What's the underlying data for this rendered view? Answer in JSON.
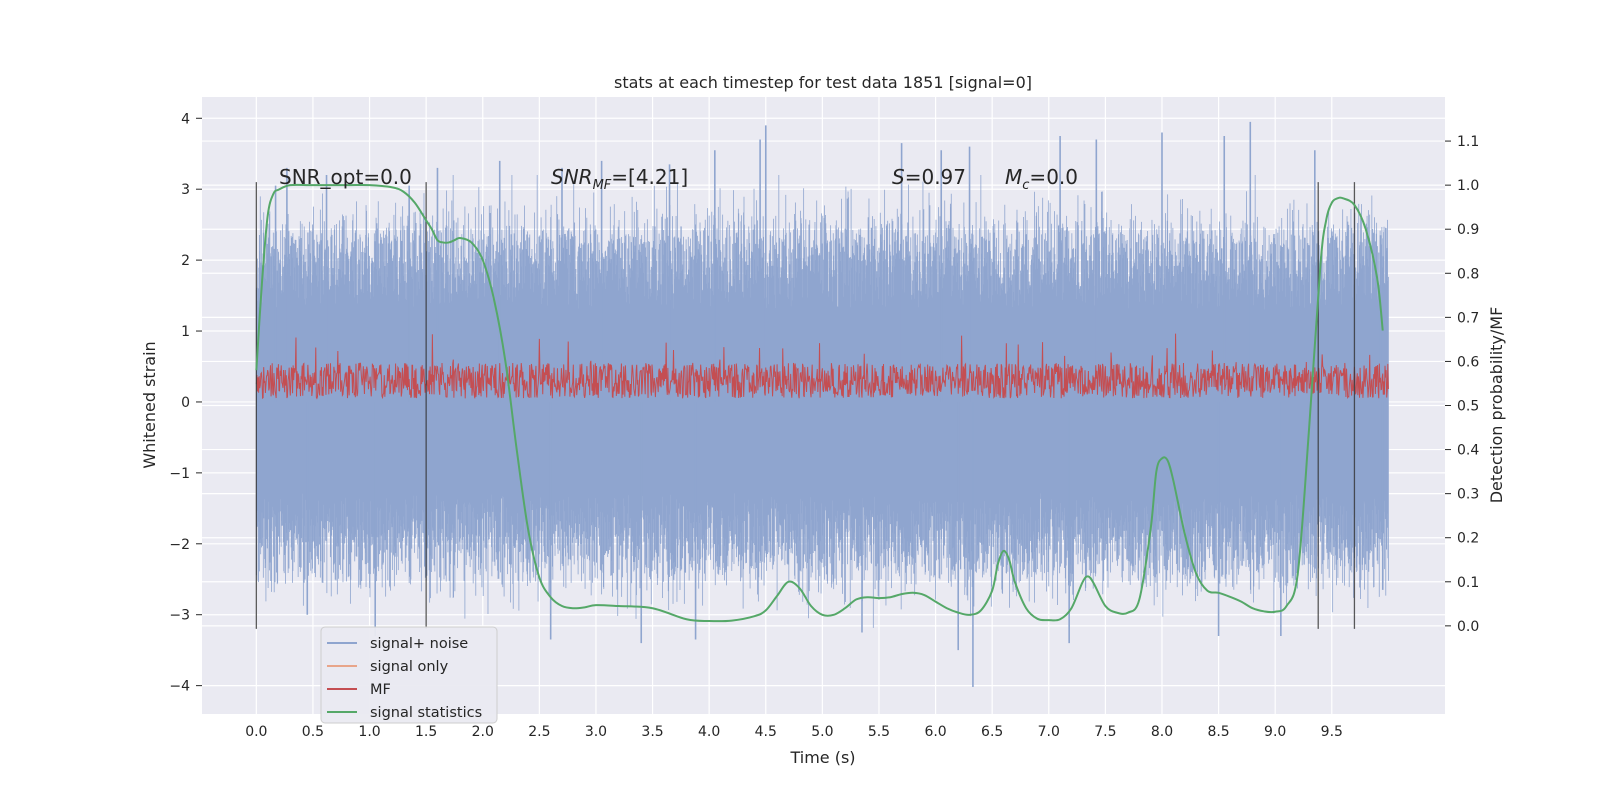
{
  "chart_data": {
    "type": "line",
    "title": "stats at each timestep for test data 1851 [signal=0]",
    "xlabel": "Time (s)",
    "ylabel": "Whitened strain",
    "ylabel_right": "Detection probability/MF",
    "xlim": [
      -0.48,
      10.5
    ],
    "ylim": [
      -4.4,
      4.3
    ],
    "ylim_right": [
      -0.2,
      1.2
    ],
    "x_ticks": [
      "0.0",
      "0.5",
      "1.0",
      "1.5",
      "2.0",
      "2.5",
      "3.0",
      "3.5",
      "4.0",
      "4.5",
      "5.0",
      "5.5",
      "6.0",
      "6.5",
      "7.0",
      "7.5",
      "8.0",
      "8.5",
      "9.0",
      "9.5"
    ],
    "y_ticks": [
      "4",
      "3",
      "2",
      "1",
      "0",
      "−1",
      "−2",
      "−3",
      "−4"
    ],
    "y_right_ticks": [
      "0.0",
      "0.1",
      "0.2",
      "0.3",
      "0.4",
      "0.5",
      "0.6",
      "0.7",
      "0.8",
      "0.9",
      "1.0",
      "1.1"
    ],
    "grid": true,
    "legend_position": "lower-left",
    "legend": [
      {
        "label": "signal+ noise",
        "color": "#8fa5cf"
      },
      {
        "label": "signal only",
        "color": "#e8a58a"
      },
      {
        "label": "MF",
        "color": "#c44e52"
      },
      {
        "label": "signal statistics",
        "color": "#55a868"
      }
    ],
    "annotations": [
      {
        "id": "snr_opt",
        "text": "SNR_opt=0.0",
        "x": 0.2,
        "y": 3.02
      },
      {
        "id": "snr_mf",
        "text": "[4.21]",
        "x": 2.6,
        "y": 3.02
      },
      {
        "id": "s",
        "text": "0.97",
        "x": 5.6,
        "y": 3.02
      },
      {
        "id": "mc",
        "text": "0.0",
        "x": 6.6,
        "y": 3.02
      }
    ],
    "vertical_lines_x": [
      0.0,
      1.5,
      9.38,
      9.7
    ],
    "vertical_lines_yrange": [
      -3.2,
      3.1
    ],
    "series": [
      {
        "name": "signal+ noise",
        "color": "#8fa5cf",
        "x_range": [
          0.0,
          10.0
        ],
        "y_envelope_typical": [
          -2.3,
          2.3
        ],
        "y_extremes": [
          -4.0,
          3.95
        ],
        "peaks": [
          [
            0.17,
            3.05
          ],
          [
            0.27,
            3.3
          ],
          [
            0.62,
            3.2
          ],
          [
            1.35,
            3.05
          ],
          [
            1.6,
            3.3
          ],
          [
            2.15,
            3.4
          ],
          [
            2.7,
            3.3
          ],
          [
            3.05,
            3.4
          ],
          [
            3.65,
            3.35
          ],
          [
            4.05,
            3.55
          ],
          [
            4.45,
            3.7
          ],
          [
            4.5,
            3.9
          ],
          [
            5.7,
            3.65
          ],
          [
            6.05,
            3.55
          ],
          [
            6.3,
            3.6
          ],
          [
            7.1,
            3.75
          ],
          [
            7.42,
            3.7
          ],
          [
            8.0,
            3.8
          ],
          [
            8.55,
            3.75
          ],
          [
            8.78,
            3.95
          ],
          [
            9.35,
            3.55
          ],
          [
            9.93,
            2.35
          ]
        ],
        "troughs": [
          [
            0.45,
            -3.0
          ],
          [
            1.05,
            -3.3
          ],
          [
            2.6,
            -3.35
          ],
          [
            3.4,
            -3.4
          ],
          [
            3.88,
            -3.35
          ],
          [
            5.35,
            -3.25
          ],
          [
            6.2,
            -3.5
          ],
          [
            6.33,
            -4.02
          ],
          [
            7.18,
            -3.4
          ],
          [
            8.5,
            -3.3
          ],
          [
            9.05,
            -3.3
          ],
          [
            9.95,
            -2.65
          ]
        ]
      },
      {
        "name": "MF",
        "color": "#c44e52",
        "x_range": [
          0.0,
          10.0
        ],
        "y_band": [
          0.05,
          0.55
        ],
        "y_max": 1.0
      },
      {
        "name": "signal statistics",
        "color": "#55a868",
        "axis": "right",
        "x": [
          0.0,
          0.05,
          0.1,
          0.15,
          0.2,
          0.3,
          0.5,
          0.8,
          1.0,
          1.2,
          1.3,
          1.4,
          1.5,
          1.55,
          1.6,
          1.65,
          1.7,
          1.75,
          1.8,
          1.9,
          2.0,
          2.1,
          2.2,
          2.3,
          2.4,
          2.5,
          2.6,
          2.7,
          2.8,
          2.9,
          3.0,
          3.2,
          3.5,
          3.8,
          4.0,
          4.2,
          4.4,
          4.5,
          4.6,
          4.7,
          4.8,
          4.9,
          5.0,
          5.1,
          5.2,
          5.3,
          5.4,
          5.5,
          5.6,
          5.7,
          5.8,
          5.9,
          6.0,
          6.1,
          6.2,
          6.3,
          6.4,
          6.5,
          6.55,
          6.6,
          6.65,
          6.7,
          6.8,
          6.9,
          7.0,
          7.1,
          7.2,
          7.3,
          7.35,
          7.4,
          7.5,
          7.6,
          7.7,
          7.8,
          7.9,
          7.95,
          8.0,
          8.05,
          8.1,
          8.2,
          8.3,
          8.4,
          8.5,
          8.6,
          8.7,
          8.8,
          8.9,
          9.0,
          9.1,
          9.2,
          9.3,
          9.4,
          9.45,
          9.5,
          9.55,
          9.6,
          9.7,
          9.8,
          9.9,
          9.95
        ],
        "y": [
          0.58,
          0.78,
          0.93,
          0.98,
          0.99,
          1.0,
          1.0,
          1.0,
          1.0,
          0.995,
          0.985,
          0.96,
          0.92,
          0.9,
          0.875,
          0.87,
          0.87,
          0.875,
          0.88,
          0.87,
          0.83,
          0.74,
          0.6,
          0.4,
          0.22,
          0.11,
          0.065,
          0.045,
          0.04,
          0.042,
          0.047,
          0.045,
          0.04,
          0.015,
          0.011,
          0.012,
          0.022,
          0.035,
          0.068,
          0.1,
          0.085,
          0.045,
          0.025,
          0.025,
          0.04,
          0.06,
          0.065,
          0.063,
          0.065,
          0.072,
          0.075,
          0.07,
          0.055,
          0.04,
          0.03,
          0.025,
          0.035,
          0.08,
          0.14,
          0.17,
          0.15,
          0.1,
          0.04,
          0.016,
          0.013,
          0.015,
          0.04,
          0.1,
          0.112,
          0.095,
          0.045,
          0.03,
          0.03,
          0.06,
          0.22,
          0.35,
          0.38,
          0.375,
          0.33,
          0.21,
          0.12,
          0.08,
          0.075,
          0.066,
          0.055,
          0.04,
          0.033,
          0.032,
          0.045,
          0.12,
          0.45,
          0.82,
          0.92,
          0.96,
          0.97,
          0.97,
          0.955,
          0.9,
          0.79,
          0.67
        ]
      }
    ]
  }
}
